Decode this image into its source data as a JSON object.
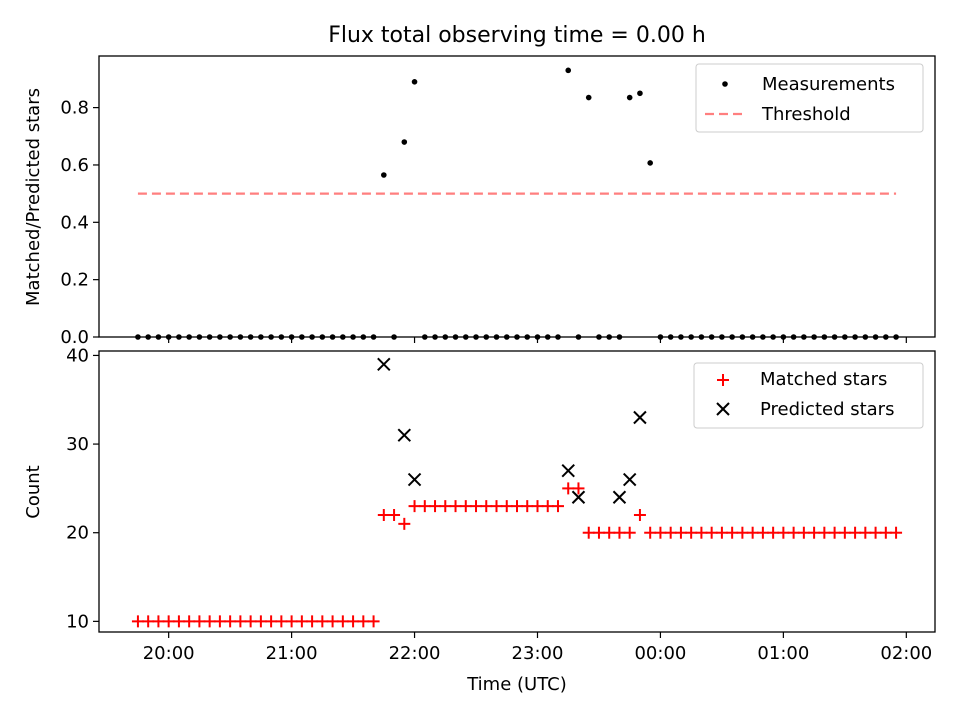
{
  "figure_title": "Flux total observing time = 0.00 h",
  "chart_data": [
    {
      "type": "scatter",
      "title": "Flux total observing time = 0.00 h",
      "xlabel": "",
      "ylabel": "Matched/Predicted stars",
      "xlim": [
        "19:26",
        "02:14"
      ],
      "ylim": [
        0,
        0.98
      ],
      "yticks": [
        "0.0",
        "0.2",
        "0.4",
        "0.6",
        "0.8"
      ],
      "grid": false,
      "legend": "top-right",
      "series": [
        {
          "name": "Measurements",
          "marker": "dot",
          "color": "#000000",
          "x": [
            "19:45",
            "19:50",
            "19:55",
            "20:00",
            "20:05",
            "20:10",
            "20:15",
            "20:20",
            "20:25",
            "20:30",
            "20:35",
            "20:40",
            "20:45",
            "20:50",
            "20:55",
            "21:00",
            "21:05",
            "21:10",
            "21:15",
            "21:20",
            "21:25",
            "21:30",
            "21:35",
            "21:40",
            "21:45",
            "21:50",
            "21:55",
            "22:00",
            "22:05",
            "22:10",
            "22:15",
            "22:20",
            "22:25",
            "22:30",
            "22:35",
            "22:40",
            "22:45",
            "22:50",
            "22:55",
            "23:00",
            "23:05",
            "23:10",
            "23:15",
            "23:20",
            "23:25",
            "23:30",
            "23:35",
            "23:40",
            "23:45",
            "23:50",
            "23:55",
            "00:00",
            "00:05",
            "00:10",
            "00:15",
            "00:20",
            "00:25",
            "00:30",
            "00:35",
            "00:40",
            "00:45",
            "00:50",
            "00:55",
            "01:00",
            "01:05",
            "01:10",
            "01:15",
            "01:20",
            "01:25",
            "01:30",
            "01:35",
            "01:40",
            "01:45",
            "01:50",
            "01:55"
          ],
          "y": [
            0,
            0,
            0,
            0,
            0,
            0,
            0,
            0,
            0,
            0,
            0,
            0,
            0,
            0,
            0,
            0,
            0,
            0,
            0,
            0,
            0,
            0,
            0,
            0,
            0.565,
            0,
            0.68,
            0.89,
            0,
            0,
            0,
            0,
            0,
            0,
            0,
            0,
            0,
            0,
            0,
            0,
            0,
            0,
            0.93,
            0,
            0.835,
            0,
            0,
            0,
            0.835,
            0.85,
            0.607,
            0,
            0,
            0,
            0,
            0,
            0,
            0,
            0,
            0,
            0,
            0,
            0,
            0,
            0,
            0,
            0,
            0,
            0,
            0,
            0,
            0,
            0,
            0,
            0
          ]
        },
        {
          "name": "Threshold",
          "style": "dashed",
          "color": "#ff7f7f",
          "x": [
            "19:45",
            "01:55"
          ],
          "y": [
            0.5,
            0.5
          ]
        }
      ]
    },
    {
      "type": "scatter",
      "title": "",
      "xlabel": "Time (UTC)",
      "ylabel": "Count",
      "xlim": [
        "19:26",
        "02:14"
      ],
      "ylim": [
        8.8,
        40.5
      ],
      "yticks": [
        "10",
        "20",
        "30",
        "40"
      ],
      "xticks": [
        "20:00",
        "21:00",
        "22:00",
        "23:00",
        "00:00",
        "01:00",
        "02:00"
      ],
      "grid": false,
      "legend": "top-right",
      "series": [
        {
          "name": "Matched stars",
          "marker": "plus",
          "color": "#ff0000",
          "x": [
            "19:45",
            "19:50",
            "19:55",
            "20:00",
            "20:05",
            "20:10",
            "20:15",
            "20:20",
            "20:25",
            "20:30",
            "20:35",
            "20:40",
            "20:45",
            "20:50",
            "20:55",
            "21:00",
            "21:05",
            "21:10",
            "21:15",
            "21:20",
            "21:25",
            "21:30",
            "21:35",
            "21:40",
            "21:45",
            "21:50",
            "21:55",
            "22:00",
            "22:05",
            "22:10",
            "22:15",
            "22:20",
            "22:25",
            "22:30",
            "22:35",
            "22:40",
            "22:45",
            "22:50",
            "22:55",
            "23:00",
            "23:05",
            "23:10",
            "23:15",
            "23:20",
            "23:25",
            "23:30",
            "23:35",
            "23:40",
            "23:45",
            "23:50",
            "23:55",
            "00:00",
            "00:05",
            "00:10",
            "00:15",
            "00:20",
            "00:25",
            "00:30",
            "00:35",
            "00:40",
            "00:45",
            "00:50",
            "00:55",
            "01:00",
            "01:05",
            "01:10",
            "01:15",
            "01:20",
            "01:25",
            "01:30",
            "01:35",
            "01:40",
            "01:45",
            "01:50",
            "01:55"
          ],
          "y": [
            10,
            10,
            10,
            10,
            10,
            10,
            10,
            10,
            10,
            10,
            10,
            10,
            10,
            10,
            10,
            10,
            10,
            10,
            10,
            10,
            10,
            10,
            10,
            10,
            22,
            22,
            21,
            23,
            23,
            23,
            23,
            23,
            23,
            23,
            23,
            23,
            23,
            23,
            23,
            23,
            23,
            23,
            25,
            25,
            20,
            20,
            20,
            20,
            20,
            22,
            20,
            20,
            20,
            20,
            20,
            20,
            20,
            20,
            20,
            20,
            20,
            20,
            20,
            20,
            20,
            20,
            20,
            20,
            20,
            20,
            20,
            20,
            20,
            20,
            20
          ]
        },
        {
          "name": "Predicted stars",
          "marker": "x",
          "color": "#000000",
          "x": [
            "21:45",
            "21:55",
            "22:00",
            "23:15",
            "23:20",
            "23:40",
            "23:45",
            "23:50"
          ],
          "y": [
            39,
            31,
            26,
            27,
            24,
            24,
            26,
            33
          ]
        }
      ]
    }
  ]
}
